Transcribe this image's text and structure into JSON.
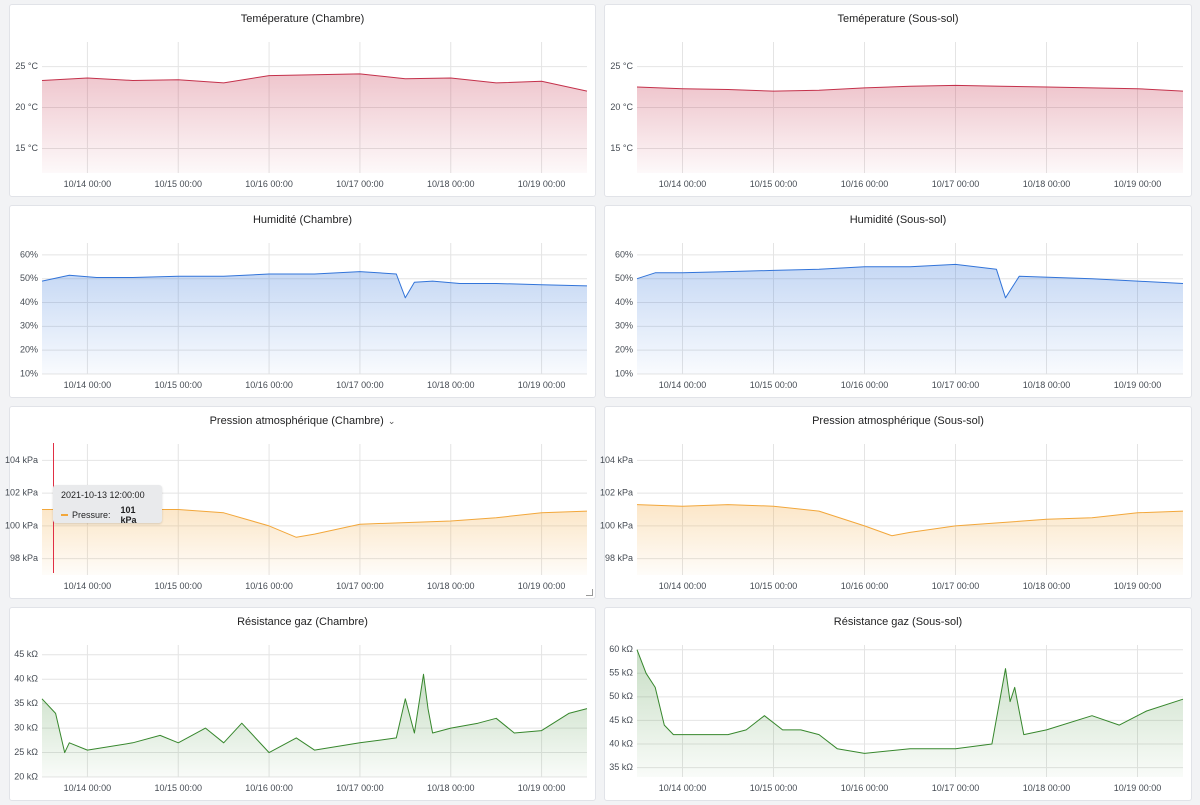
{
  "colors": {
    "temperature": "#c4314b",
    "humidity": "#3274d9",
    "pressure": "#f2a73b",
    "gas": "#37872d",
    "cursor": "#e02f44"
  },
  "xaxis": {
    "start": "2021-10-13 12:00",
    "end": "2021-10-19 12:00",
    "ticks": [
      "10/14 00:00",
      "10/15 00:00",
      "10/16 00:00",
      "10/17 00:00",
      "10/18 00:00",
      "10/19 00:00"
    ]
  },
  "tooltip": {
    "time": "2021-10-13 12:00:00",
    "series": "Pressure:",
    "value": "101 kPa"
  },
  "chart_data": [
    {
      "type": "area",
      "title": "Teméperature (Chambre)",
      "color_key": "temperature",
      "ylim": [
        12,
        28
      ],
      "yticks": [
        15,
        20,
        25
      ],
      "yunit": " °C",
      "x": [
        0,
        0.5,
        1,
        1.5,
        2,
        2.5,
        3,
        3.5,
        4,
        4.5,
        5,
        5.5,
        6
      ],
      "values": [
        23.3,
        23.6,
        23.3,
        23.4,
        23.0,
        23.9,
        24.0,
        24.1,
        23.5,
        23.6,
        23.0,
        23.2,
        22.0
      ]
    },
    {
      "type": "area",
      "title": "Teméperature (Sous-sol)",
      "color_key": "temperature",
      "ylim": [
        12,
        28
      ],
      "yticks": [
        15,
        20,
        25
      ],
      "yunit": " °C",
      "x": [
        0,
        0.5,
        1,
        1.5,
        2,
        2.5,
        3,
        3.5,
        4,
        4.5,
        5,
        5.5,
        6
      ],
      "values": [
        22.5,
        22.3,
        22.2,
        22.0,
        22.1,
        22.4,
        22.6,
        22.7,
        22.6,
        22.5,
        22.4,
        22.3,
        22.0
      ]
    },
    {
      "type": "area",
      "title": "Humidité (Chambre)",
      "color_key": "humidity",
      "ylim": [
        10,
        65
      ],
      "yticks": [
        10,
        20,
        30,
        40,
        50,
        60
      ],
      "yunit": "%",
      "x": [
        0,
        0.3,
        0.6,
        1,
        1.5,
        2,
        2.5,
        3,
        3.5,
        3.9,
        4.0,
        4.1,
        4.3,
        4.6,
        5,
        5.5,
        6
      ],
      "values": [
        49,
        51.5,
        50.5,
        50.5,
        51,
        51,
        52,
        52,
        53,
        52,
        42,
        48.5,
        49,
        48,
        48,
        47.5,
        47
      ]
    },
    {
      "type": "area",
      "title": "Humidité (Sous-sol)",
      "color_key": "humidity",
      "ylim": [
        10,
        65
      ],
      "yticks": [
        10,
        20,
        30,
        40,
        50,
        60
      ],
      "yunit": "%",
      "x": [
        0,
        0.2,
        0.5,
        1,
        1.5,
        2,
        2.5,
        3,
        3.5,
        3.95,
        4.05,
        4.2,
        4.6,
        5,
        5.5,
        6
      ],
      "values": [
        50,
        52.5,
        52.5,
        53,
        53.5,
        54,
        55,
        55,
        56,
        54,
        42,
        51,
        50.5,
        50,
        49,
        48
      ]
    },
    {
      "type": "area",
      "title": "Pression atmosphérique (Chambre)",
      "color_key": "pressure",
      "ylim": [
        97,
        105
      ],
      "yticks": [
        98,
        100,
        102,
        104
      ],
      "yunit": " kPa",
      "x": [
        0,
        0.5,
        1,
        1.5,
        2,
        2.5,
        2.8,
        3,
        3.5,
        4,
        4.5,
        5,
        5.5,
        6
      ],
      "values": [
        101.0,
        101.0,
        101.0,
        101.0,
        100.8,
        100.0,
        99.3,
        99.5,
        100.1,
        100.2,
        100.3,
        100.5,
        100.8,
        100.9
      ]
    },
    {
      "type": "area",
      "title": "Pression atmosphérique (Sous-sol)",
      "color_key": "pressure",
      "ylim": [
        97,
        105
      ],
      "yticks": [
        98,
        100,
        102,
        104
      ],
      "yunit": " kPa",
      "x": [
        0,
        0.5,
        1,
        1.5,
        2,
        2.5,
        2.8,
        3,
        3.5,
        4,
        4.5,
        5,
        5.5,
        6
      ],
      "values": [
        101.3,
        101.2,
        101.3,
        101.2,
        100.9,
        100.0,
        99.4,
        99.6,
        100.0,
        100.2,
        100.4,
        100.5,
        100.8,
        100.9
      ]
    },
    {
      "type": "area",
      "title": "Résistance gaz (Chambre)",
      "color_key": "gas",
      "ylim": [
        20,
        47
      ],
      "yticks": [
        20,
        25,
        30,
        35,
        40,
        45
      ],
      "yunit": " kΩ",
      "x": [
        0,
        0.15,
        0.25,
        0.3,
        0.5,
        1,
        1.3,
        1.5,
        1.8,
        2,
        2.2,
        2.5,
        2.8,
        3,
        3.5,
        3.9,
        4.0,
        4.1,
        4.2,
        4.25,
        4.3,
        4.5,
        4.8,
        5,
        5.2,
        5.5,
        5.8,
        6
      ],
      "values": [
        36,
        33,
        25,
        27,
        25.5,
        27,
        28.5,
        27,
        30,
        27,
        31,
        25,
        28,
        25.5,
        27,
        28,
        36,
        29,
        41,
        34,
        29,
        30,
        31,
        32,
        29,
        29.5,
        33,
        34
      ]
    },
    {
      "type": "area",
      "title": "Résistance gaz (Sous-sol)",
      "color_key": "gas",
      "ylim": [
        33,
        61
      ],
      "yticks": [
        35,
        40,
        45,
        50,
        55,
        60
      ],
      "yunit": " kΩ",
      "x": [
        0,
        0.1,
        0.2,
        0.3,
        0.4,
        0.6,
        1,
        1.2,
        1.4,
        1.6,
        1.8,
        2,
        2.2,
        2.5,
        3,
        3.5,
        3.9,
        4.05,
        4.1,
        4.15,
        4.2,
        4.25,
        4.5,
        5,
        5.3,
        5.6,
        6
      ],
      "values": [
        60,
        55,
        52,
        44,
        42,
        42,
        42,
        43,
        46,
        43,
        43,
        42,
        39,
        38,
        39,
        39,
        40,
        56,
        49,
        52,
        47,
        42,
        43,
        46,
        44,
        47,
        49.5
      ]
    }
  ]
}
